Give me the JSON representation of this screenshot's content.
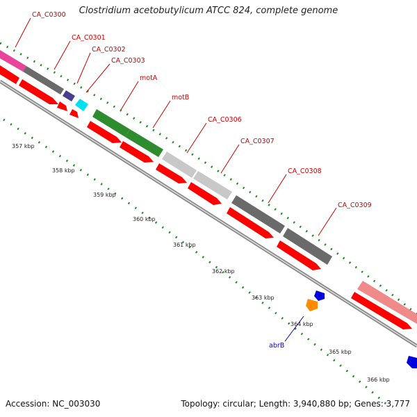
{
  "title": "Clostridium acetobutylicum ATCC 824, complete genome",
  "footer": {
    "accession": "Accession: NC_003030",
    "info": "Topology: circular; Length: 3,940,880 bp; Genes: 3,777"
  },
  "colors": {
    "label_red": "#cc0000",
    "label_blue": "#0000cc",
    "cds_red": "#ff0000",
    "backbone": "#888888",
    "tick_green": "#2b8a2b"
  },
  "gene_labels": [
    {
      "name": "CA_C0300",
      "color": "#cc0000"
    },
    {
      "name": "CA_C0301",
      "color": "#cc0000"
    },
    {
      "name": "CA_C0302",
      "color": "#cc0000"
    },
    {
      "name": "CA_C0303",
      "color": "#cc0000"
    },
    {
      "name": "motA",
      "color": "#cc0000"
    },
    {
      "name": "motB",
      "color": "#cc0000"
    },
    {
      "name": "CA_C0306",
      "color": "#cc0000"
    },
    {
      "name": "CA_C0307",
      "color": "#cc0000"
    },
    {
      "name": "CA_C0308",
      "color": "#cc0000"
    },
    {
      "name": "CA_C0309",
      "color": "#cc0000"
    },
    {
      "name": "abrB",
      "color": "#0000cc"
    }
  ],
  "ticks": [
    "357 kbp",
    "358 kbp",
    "359 kbp",
    "360 kbp",
    "361 kbp",
    "362 kbp",
    "363 kbp",
    "364 kbp",
    "365 kbp",
    "366 kbp"
  ]
}
